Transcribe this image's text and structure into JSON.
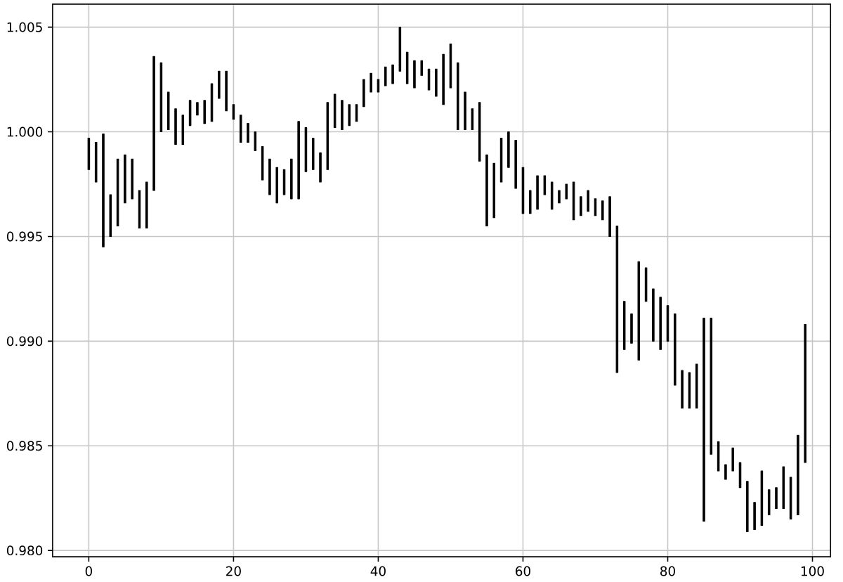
{
  "chart_data": {
    "type": "candlestick",
    "color": "#000000",
    "grid": true,
    "x": [
      0,
      1,
      2,
      3,
      4,
      5,
      6,
      7,
      8,
      9,
      10,
      11,
      12,
      13,
      14,
      15,
      16,
      17,
      18,
      19,
      20,
      21,
      22,
      23,
      24,
      25,
      26,
      27,
      28,
      29,
      30,
      31,
      32,
      33,
      34,
      35,
      36,
      37,
      38,
      39,
      40,
      41,
      42,
      43,
      44,
      45,
      46,
      47,
      48,
      49,
      50,
      51,
      52,
      53,
      54,
      55,
      56,
      57,
      58,
      59,
      60,
      61,
      62,
      63,
      64,
      65,
      66,
      67,
      68,
      69,
      70,
      71,
      72,
      73,
      74,
      75,
      76,
      77,
      78,
      79,
      80,
      81,
      82,
      83,
      84,
      85,
      86,
      87,
      88,
      89,
      90,
      91,
      92,
      93,
      94,
      95,
      96,
      97,
      98,
      99
    ],
    "ohlc": [
      [
        0.9997,
        0.9997,
        0.9982,
        0.9982
      ],
      [
        0.9995,
        0.9995,
        0.9976,
        0.9976
      ],
      [
        0.9999,
        0.9999,
        0.9945,
        0.9945
      ],
      [
        0.995,
        0.997,
        0.995,
        0.997
      ],
      [
        0.9955,
        0.9987,
        0.9955,
        0.9987
      ],
      [
        0.9989,
        0.9989,
        0.9966,
        0.9966
      ],
      [
        0.9987,
        0.9987,
        0.9968,
        0.9968
      ],
      [
        0.9954,
        0.9972,
        0.9954,
        0.9972
      ],
      [
        0.9954,
        0.9976,
        0.9954,
        0.9976
      ],
      [
        0.9972,
        1.0036,
        0.9972,
        1.0036
      ],
      [
        1.0033,
        1.0033,
        1.0,
        1.0
      ],
      [
        1.0019,
        1.0019,
        1.0001,
        1.0001
      ],
      [
        1.0011,
        1.0011,
        0.9994,
        0.9994
      ],
      [
        0.9994,
        1.0008,
        0.9994,
        1.0008
      ],
      [
        1.0003,
        1.0015,
        1.0003,
        1.0015
      ],
      [
        1.0014,
        1.0014,
        1.0008,
        1.0008
      ],
      [
        1.0004,
        1.0015,
        1.0004,
        1.0015
      ],
      [
        1.0005,
        1.0023,
        1.0005,
        1.0023
      ],
      [
        1.0029,
        1.0029,
        1.0016,
        1.0016
      ],
      [
        1.0029,
        1.0029,
        1.001,
        1.001
      ],
      [
        1.0013,
        1.0013,
        1.0006,
        1.0006
      ],
      [
        1.0008,
        1.0008,
        0.9995,
        0.9995
      ],
      [
        1.0004,
        1.0004,
        0.9995,
        0.9995
      ],
      [
        1.0,
        1.0,
        0.9991,
        0.9991
      ],
      [
        0.9993,
        0.9993,
        0.9977,
        0.9977
      ],
      [
        0.9987,
        0.9987,
        0.997,
        0.997
      ],
      [
        0.9983,
        0.9983,
        0.9966,
        0.9966
      ],
      [
        0.997,
        0.9982,
        0.997,
        0.9982
      ],
      [
        0.9968,
        0.9987,
        0.9968,
        0.9987
      ],
      [
        0.9968,
        1.0005,
        0.9968,
        1.0005
      ],
      [
        1.0002,
        1.0002,
        0.9981,
        0.9981
      ],
      [
        0.9997,
        0.9997,
        0.9982,
        0.9982
      ],
      [
        0.9976,
        0.999,
        0.9976,
        0.999
      ],
      [
        0.9982,
        1.0014,
        0.9982,
        1.0014
      ],
      [
        1.0018,
        1.0018,
        1.0002,
        1.0002
      ],
      [
        1.0015,
        1.0015,
        1.0001,
        1.0001
      ],
      [
        1.0003,
        1.0013,
        1.0003,
        1.0013
      ],
      [
        1.0005,
        1.0013,
        1.0005,
        1.0013
      ],
      [
        1.0012,
        1.0025,
        1.0012,
        1.0025
      ],
      [
        1.0028,
        1.0028,
        1.0019,
        1.0019
      ],
      [
        1.0019,
        1.0025,
        1.0019,
        1.0025
      ],
      [
        1.0022,
        1.0031,
        1.0022,
        1.0031
      ],
      [
        1.0023,
        1.0032,
        1.0023,
        1.0032
      ],
      [
        1.005,
        1.005,
        1.0029,
        1.0029
      ],
      [
        1.0038,
        1.0038,
        1.0023,
        1.0023
      ],
      [
        1.0034,
        1.0034,
        1.0021,
        1.0021
      ],
      [
        1.0027,
        1.0034,
        1.0027,
        1.0034
      ],
      [
        1.003,
        1.003,
        1.002,
        1.002
      ],
      [
        1.003,
        1.003,
        1.0017,
        1.0017
      ],
      [
        1.0013,
        1.0037,
        1.0013,
        1.0037
      ],
      [
        1.0042,
        1.0042,
        1.0021,
        1.0021
      ],
      [
        1.0033,
        1.0033,
        1.0001,
        1.0001
      ],
      [
        1.0019,
        1.0019,
        1.0001,
        1.0001
      ],
      [
        1.0011,
        1.0011,
        1.0001,
        1.0001
      ],
      [
        1.0014,
        1.0014,
        0.9986,
        0.9986
      ],
      [
        0.9989,
        0.9989,
        0.9955,
        0.9955
      ],
      [
        0.9959,
        0.9985,
        0.9959,
        0.9985
      ],
      [
        0.9976,
        0.9997,
        0.9976,
        0.9997
      ],
      [
        1.0,
        1.0,
        0.9983,
        0.9983
      ],
      [
        0.9996,
        0.9996,
        0.9973,
        0.9973
      ],
      [
        0.9983,
        0.9983,
        0.9961,
        0.9961
      ],
      [
        0.9961,
        0.9972,
        0.9961,
        0.9972
      ],
      [
        0.9963,
        0.9979,
        0.9963,
        0.9979
      ],
      [
        0.9979,
        0.9979,
        0.997,
        0.997
      ],
      [
        0.9976,
        0.9976,
        0.9963,
        0.9963
      ],
      [
        0.9966,
        0.9972,
        0.9966,
        0.9972
      ],
      [
        0.9968,
        0.9975,
        0.9968,
        0.9975
      ],
      [
        0.9976,
        0.9976,
        0.9958,
        0.9958
      ],
      [
        0.996,
        0.9969,
        0.996,
        0.9969
      ],
      [
        0.9972,
        0.9972,
        0.9962,
        0.9962
      ],
      [
        0.9968,
        0.9968,
        0.996,
        0.996
      ],
      [
        0.9958,
        0.9967,
        0.9958,
        0.9967
      ],
      [
        0.9969,
        0.9969,
        0.995,
        0.995
      ],
      [
        0.9955,
        0.9955,
        0.9885,
        0.9885
      ],
      [
        0.9896,
        0.9919,
        0.9896,
        0.9919
      ],
      [
        0.9913,
        0.9913,
        0.9899,
        0.9899
      ],
      [
        0.9891,
        0.9938,
        0.9891,
        0.9938
      ],
      [
        0.9935,
        0.9935,
        0.9919,
        0.9919
      ],
      [
        0.9925,
        0.9925,
        0.99,
        0.99
      ],
      [
        0.9921,
        0.9921,
        0.9896,
        0.9896
      ],
      [
        0.99,
        0.9917,
        0.99,
        0.9917
      ],
      [
        0.9913,
        0.9913,
        0.9879,
        0.9879
      ],
      [
        0.9886,
        0.9886,
        0.9868,
        0.9868
      ],
      [
        0.9868,
        0.9885,
        0.9868,
        0.9885
      ],
      [
        0.9868,
        0.9889,
        0.9868,
        0.9889
      ],
      [
        0.9911,
        0.9911,
        0.9814,
        0.9814
      ],
      [
        0.9911,
        0.9911,
        0.9846,
        0.9846
      ],
      [
        0.9852,
        0.9852,
        0.9838,
        0.9838
      ],
      [
        0.9834,
        0.9841,
        0.9834,
        0.9841
      ],
      [
        0.9849,
        0.9849,
        0.9838,
        0.9838
      ],
      [
        0.9842,
        0.9842,
        0.983,
        0.983
      ],
      [
        0.9833,
        0.9833,
        0.9809,
        0.9809
      ],
      [
        0.981,
        0.9823,
        0.981,
        0.9823
      ],
      [
        0.9838,
        0.9838,
        0.9812,
        0.9812
      ],
      [
        0.9817,
        0.9829,
        0.9817,
        0.9829
      ],
      [
        0.982,
        0.983,
        0.982,
        0.983
      ],
      [
        0.984,
        0.984,
        0.982,
        0.982
      ],
      [
        0.9815,
        0.9835,
        0.9815,
        0.9835
      ],
      [
        0.9817,
        0.9855,
        0.9817,
        0.9855
      ],
      [
        0.9842,
        0.9908,
        0.9842,
        0.9908
      ]
    ],
    "xlim": [
      -5,
      102.5
    ],
    "ylim": [
      0.9797,
      1.0061
    ],
    "xticks": [
      0,
      20,
      40,
      60,
      80,
      100
    ],
    "yticks": [
      {
        "value": 0.98,
        "label": "0.980"
      },
      {
        "value": 0.985,
        "label": "0.985"
      },
      {
        "value": 0.99,
        "label": "0.990"
      },
      {
        "value": 0.995,
        "label": "0.995"
      },
      {
        "value": 1.0,
        "label": "1.000"
      },
      {
        "value": 1.005,
        "label": "1.005"
      }
    ]
  }
}
